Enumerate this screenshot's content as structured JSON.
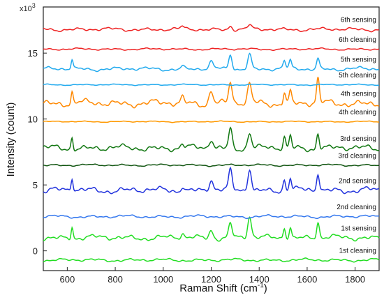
{
  "chart_data": {
    "type": "line",
    "xlabel": "Raman Shift (cm",
    "xlabel_sup": "-1",
    "xlabel_end": ")",
    "ylabel": "Intensity (count)",
    "multiplier_base": "x10",
    "multiplier_exp": "3",
    "xlim": [
      500,
      1900
    ],
    "ylim": [
      -1.5,
      18.5
    ],
    "x_ticks": [
      600,
      800,
      1000,
      1200,
      1400,
      1600,
      1800
    ],
    "y_ticks": [
      0,
      5,
      10,
      15
    ],
    "grid": false,
    "legend": "none (labels placed next to each trace on the right)",
    "peaks": [
      {
        "x": 620,
        "w": 6
      },
      {
        "x": 1080,
        "w": 9
      },
      {
        "x": 1200,
        "w": 12
      },
      {
        "x": 1280,
        "w": 10
      },
      {
        "x": 1360,
        "w": 11
      },
      {
        "x": 1505,
        "w": 7
      },
      {
        "x": 1530,
        "w": 7
      },
      {
        "x": 1645,
        "w": 8
      }
    ],
    "series": [
      {
        "name": "1st cleaning",
        "color": "#22dd22",
        "baseline": -0.7,
        "noise": 0.12,
        "amps": [
          0,
          0,
          0,
          0,
          0,
          0,
          0,
          0
        ]
      },
      {
        "name": "1st sensing",
        "color": "#22dd22",
        "baseline": 1.0,
        "noise": 0.22,
        "amps": [
          0.9,
          0.3,
          0.6,
          1.1,
          1.6,
          0.9,
          0.9,
          1.2
        ]
      },
      {
        "name": "2nd cleaning",
        "color": "#3377ee",
        "baseline": 2.6,
        "noise": 0.12,
        "amps": [
          0,
          0,
          0,
          0,
          0,
          0,
          0,
          0
        ]
      },
      {
        "name": "2nd sensing",
        "color": "#2233dd",
        "baseline": 4.6,
        "noise": 0.25,
        "amps": [
          1.0,
          0.4,
          0.8,
          1.4,
          1.7,
          0.8,
          0.9,
          1.4
        ]
      },
      {
        "name": "3rd cleaning",
        "color": "#115511",
        "baseline": 6.5,
        "noise": 0.08,
        "amps": [
          0,
          0,
          0,
          0,
          0,
          0,
          0,
          0
        ]
      },
      {
        "name": "3rd sensing",
        "color": "#117711",
        "baseline": 7.8,
        "noise": 0.25,
        "amps": [
          0.9,
          0.3,
          0.7,
          1.5,
          1.2,
          0.8,
          0.9,
          1.2
        ]
      },
      {
        "name": "4th cleaning",
        "color": "#ff9900",
        "baseline": 9.8,
        "noise": 0.05,
        "amps": [
          0,
          0,
          0,
          0,
          0,
          0,
          0,
          0
        ]
      },
      {
        "name": "4th sensing",
        "color": "#ff8800",
        "baseline": 11.2,
        "noise": 0.28,
        "amps": [
          0.8,
          0.4,
          1.0,
          1.6,
          1.4,
          0.9,
          0.9,
          1.8
        ]
      },
      {
        "name": "5th cleaning",
        "color": "#22aaee",
        "baseline": 12.6,
        "noise": 0.05,
        "amps": [
          0,
          0,
          0,
          0,
          0,
          0,
          0,
          0
        ]
      },
      {
        "name": "5th sensing",
        "color": "#22aaee",
        "baseline": 13.8,
        "noise": 0.15,
        "amps": [
          0.7,
          0.2,
          0.5,
          1.1,
          1.1,
          0.6,
          0.6,
          0.8
        ]
      },
      {
        "name": "6th cleaning",
        "color": "#ee2222",
        "baseline": 15.3,
        "noise": 0.08,
        "amps": [
          0,
          0,
          0,
          0,
          0,
          0,
          0,
          0
        ]
      },
      {
        "name": "6th sensing",
        "color": "#ee2222",
        "baseline": 16.8,
        "noise": 0.14,
        "amps": [
          0,
          0.2,
          0,
          0.3,
          0.3,
          0,
          0,
          0
        ]
      }
    ]
  }
}
